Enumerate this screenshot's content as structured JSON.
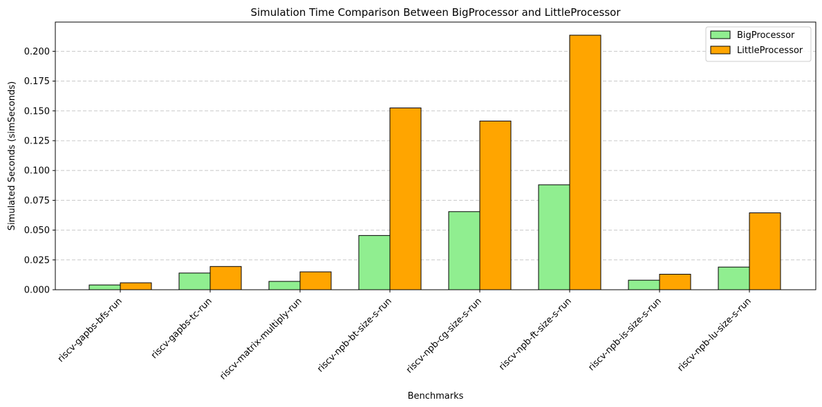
{
  "chart_data": {
    "type": "bar",
    "title": "Simulation Time Comparison Between BigProcessor and LittleProcessor",
    "xlabel": "Benchmarks",
    "ylabel": "Simulated Seconds (simSeconds)",
    "categories": [
      "riscv-gapbs-bfs-run",
      "riscv-gapbs-tc-run",
      "riscv-matrix-multiply-run",
      "riscv-npb-bt-size-s-run",
      "riscv-npb-cg-size-s-run",
      "riscv-npb-ft-size-s-run",
      "riscv-npb-is-size-s-run",
      "riscv-npb-lu-size-s-run"
    ],
    "series": [
      {
        "name": "BigProcessor",
        "color": "#90ee90",
        "values": [
          0.004,
          0.014,
          0.007,
          0.0455,
          0.0655,
          0.088,
          0.008,
          0.019
        ]
      },
      {
        "name": "LittleProcessor",
        "color": "#ffa500",
        "values": [
          0.0058,
          0.0195,
          0.015,
          0.1525,
          0.1415,
          0.2135,
          0.013,
          0.0645
        ]
      }
    ],
    "ylim": [
      0,
      0.2245
    ],
    "yticks": [
      "0.000",
      "0.025",
      "0.050",
      "0.075",
      "0.100",
      "0.125",
      "0.150",
      "0.175",
      "0.200"
    ],
    "grid": "y-dashed",
    "legend_position": "top-right"
  }
}
